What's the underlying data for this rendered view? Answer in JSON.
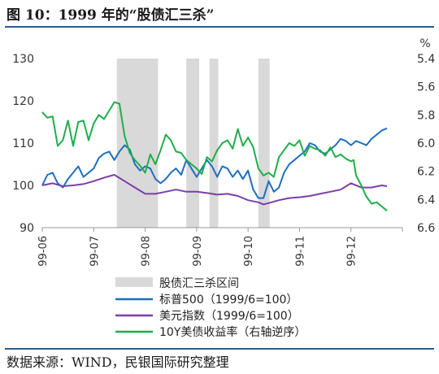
{
  "title": "图 10：1999 年的“股债汇三杀”",
  "source": "数据来源：WIND，民银国际研究整理",
  "chart_data": {
    "type": "line",
    "right_unit": "%",
    "x_ticks": [
      "99-06",
      "99-07",
      "99-08",
      "99-09",
      "99-10",
      "99-11",
      "99-12"
    ],
    "ylim_left": [
      90,
      130
    ],
    "yticks_left": [
      90,
      100,
      110,
      120,
      130
    ],
    "ylim_right": [
      6.6,
      5.4
    ],
    "yticks_right": [
      "5.4",
      "5.6",
      "5.8",
      "6.0",
      "6.2",
      "6.4",
      "6.6"
    ],
    "right_axis_reversed": true,
    "shaded_periods": [
      {
        "start": 1.45,
        "end": 2.25
      },
      {
        "start": 2.8,
        "end": 3.05
      },
      {
        "start": 3.25,
        "end": 3.42
      },
      {
        "start": 4.2,
        "end": 4.42
      }
    ],
    "series": [
      {
        "name": "标普500（1999/6=100）",
        "color": "#1f6fbf",
        "axis": "left",
        "x": [
          0,
          0.1,
          0.2,
          0.3,
          0.4,
          0.5,
          0.6,
          0.7,
          0.8,
          0.9,
          1.0,
          1.1,
          1.2,
          1.3,
          1.4,
          1.5,
          1.6,
          1.7,
          1.8,
          1.9,
          2.0,
          2.1,
          2.2,
          2.3,
          2.4,
          2.5,
          2.6,
          2.7,
          2.8,
          2.9,
          3.0,
          3.1,
          3.2,
          3.3,
          3.4,
          3.5,
          3.6,
          3.7,
          3.8,
          3.9,
          4.0,
          4.1,
          4.2,
          4.3,
          4.4,
          4.5,
          4.6,
          4.7,
          4.8,
          4.9,
          5.0,
          5.1,
          5.2,
          5.3,
          5.4,
          5.5,
          5.6,
          5.7,
          5.8,
          5.9,
          6.0,
          6.1,
          6.2,
          6.3,
          6.4,
          6.5,
          6.6,
          6.7
        ],
        "values": [
          100,
          102.5,
          103,
          100.5,
          99.5,
          101.5,
          103,
          104.5,
          102,
          103,
          104,
          106.5,
          107.5,
          108,
          106,
          108,
          109.5,
          108.5,
          105,
          103.5,
          104.5,
          104,
          101.5,
          100.5,
          101.5,
          103,
          104,
          102.5,
          106,
          104,
          102,
          104,
          106,
          104.5,
          102,
          104.5,
          104,
          102,
          103.5,
          101.5,
          103.5,
          99,
          97,
          97,
          101,
          98.5,
          99.5,
          103,
          105,
          106,
          107,
          108,
          110,
          109.5,
          108,
          107.5,
          108.5,
          109.5,
          111,
          110.5,
          109.5,
          110.5,
          110,
          109.5,
          111,
          112,
          113,
          113.5
        ]
      },
      {
        "name": "美元指数（1999/6=100）",
        "color": "#7b3fa8",
        "axis": "left",
        "x": [
          0,
          0.2,
          0.4,
          0.6,
          0.8,
          1.0,
          1.2,
          1.4,
          1.6,
          1.8,
          2.0,
          2.2,
          2.4,
          2.6,
          2.8,
          3.0,
          3.2,
          3.4,
          3.6,
          3.8,
          4.0,
          4.2,
          4.3,
          4.4,
          4.6,
          4.8,
          5.0,
          5.2,
          5.4,
          5.6,
          5.8,
          6.0,
          6.2,
          6.4,
          6.6,
          6.7
        ],
        "values": [
          100,
          100.5,
          99.8,
          100,
          100.3,
          101,
          101.8,
          102.5,
          101,
          99.5,
          98,
          98,
          98.5,
          99,
          98.5,
          98.5,
          98.2,
          97.8,
          98,
          97.5,
          96.5,
          96,
          95.5,
          95.8,
          96.5,
          97,
          97.2,
          97.5,
          98,
          98.5,
          99,
          100.5,
          99.5,
          99.5,
          100,
          99.8
        ]
      },
      {
        "name": "10Y美债收益率（右轴逆序）",
        "color": "#1fae4a",
        "axis": "right",
        "x": [
          0,
          0.1,
          0.2,
          0.3,
          0.4,
          0.5,
          0.6,
          0.7,
          0.8,
          0.9,
          1.0,
          1.1,
          1.2,
          1.3,
          1.4,
          1.5,
          1.6,
          1.7,
          1.8,
          1.9,
          2.0,
          2.1,
          2.2,
          2.3,
          2.4,
          2.5,
          2.6,
          2.7,
          2.8,
          2.9,
          3.0,
          3.1,
          3.2,
          3.3,
          3.4,
          3.5,
          3.6,
          3.7,
          3.8,
          3.9,
          4.0,
          4.1,
          4.2,
          4.3,
          4.4,
          4.5,
          4.6,
          4.7,
          4.8,
          4.9,
          5.0,
          5.1,
          5.2,
          5.3,
          5.4,
          5.5,
          5.6,
          5.7,
          5.8,
          5.9,
          6.0,
          6.05,
          6.1,
          6.2,
          6.3,
          6.4,
          6.5,
          6.6,
          6.7
        ],
        "values": [
          5.78,
          5.82,
          5.81,
          6.02,
          5.98,
          5.84,
          6.02,
          5.85,
          5.84,
          5.98,
          5.86,
          5.8,
          5.83,
          5.77,
          5.71,
          5.72,
          5.95,
          6.07,
          6.12,
          6.16,
          6.21,
          6.08,
          6.15,
          6.05,
          5.94,
          5.98,
          6.06,
          6.07,
          6.12,
          6.15,
          6.18,
          6.22,
          6.1,
          6.13,
          6.05,
          6.0,
          5.98,
          6.04,
          5.9,
          6.02,
          5.96,
          6.03,
          6.18,
          6.23,
          6.21,
          6.24,
          6.1,
          6.05,
          6.0,
          6.02,
          5.98,
          6.09,
          6.02,
          6.04,
          6.05,
          6.09,
          6.03,
          6.1,
          6.08,
          6.11,
          6.13,
          6.12,
          6.23,
          6.3,
          6.38,
          6.43,
          6.42,
          6.45,
          6.48
        ]
      }
    ],
    "legend": [
      {
        "label": "股债汇三杀区间",
        "kind": "box",
        "color": "#d9d9d9"
      },
      {
        "label": "标普500（1999/6=100）",
        "kind": "line",
        "color": "#1f6fbf"
      },
      {
        "label": "美元指数（1999/6=100）",
        "kind": "line",
        "color": "#7b3fa8"
      },
      {
        "label": "10Y美债收益率（右轴逆序）",
        "kind": "line",
        "color": "#1fae4a"
      }
    ],
    "legend_position": "bottom-center"
  }
}
